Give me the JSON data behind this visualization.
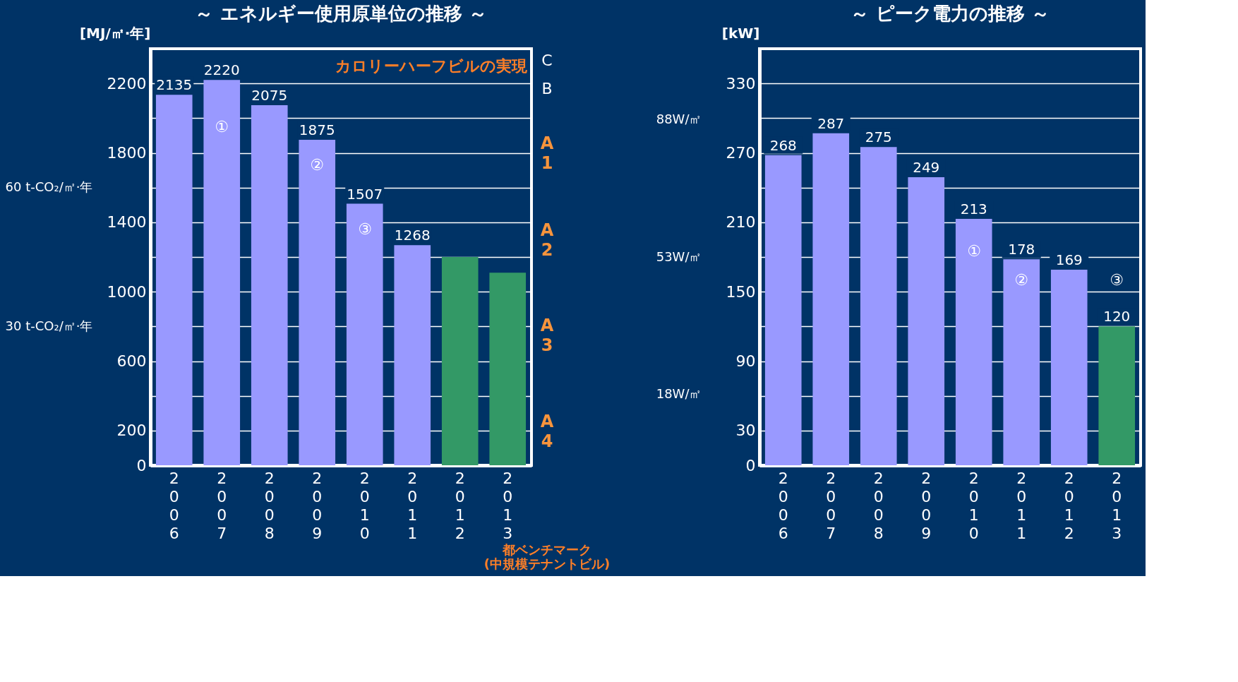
{
  "chart_data": [
    {
      "type": "bar",
      "title": "～ エネルギー使用原単位の推移 ～",
      "ylabel": "[MJ/㎡·年]",
      "categories": [
        "2006",
        "2007",
        "2008",
        "2009",
        "2010",
        "2011",
        "2012",
        "2013"
      ],
      "values": [
        2135,
        2220,
        2075,
        1875,
        1507,
        1268,
        1200,
        1110
      ],
      "colors": [
        "#9999ff",
        "#9999ff",
        "#9999ff",
        "#9999ff",
        "#9999ff",
        "#9999ff",
        "#339966",
        "#339966"
      ],
      "value_labels": [
        "2135",
        "2220",
        "2075",
        "1875",
        "1507",
        "1268",
        null,
        null
      ],
      "ylim": [
        0,
        2400
      ],
      "yticks": [
        0,
        200,
        {
          "value": 400,
          "label": null
        },
        600,
        {
          "value": 800,
          "label": null
        },
        1000,
        {
          "value": 1200,
          "label": null
        },
        1400,
        {
          "value": 1600,
          "label": null
        },
        1800,
        {
          "value": 2000,
          "label": null
        },
        2200
      ],
      "y2lim": [
        0,
        90
      ],
      "y2ticks": [
        {
          "value": 30,
          "label": "30 t-CO₂/㎡·年"
        },
        {
          "value": 60,
          "label": "60 t-CO₂/㎡·年"
        }
      ],
      "grid": "y",
      "annotations": [
        "B",
        "C",
        "カロリーハーフビルの実現",
        "①",
        "②",
        "③",
        "A1",
        "A2",
        "A3",
        "A4",
        "都ベンチマーク (中規模テナントビル)"
      ]
    },
    {
      "type": "bar",
      "title": "～ ピーク電力の推移 ～",
      "ylabel": "[kW]",
      "categories": [
        "2006",
        "2007",
        "2008",
        "2009",
        "2010",
        "2011",
        "2012",
        "2013"
      ],
      "values": [
        268,
        287,
        275,
        249,
        213,
        178,
        169,
        120
      ],
      "colors": [
        "#9999ff",
        "#9999ff",
        "#9999ff",
        "#9999ff",
        "#9999ff",
        "#9999ff",
        "#9999ff",
        "#339966"
      ],
      "data_labels": true,
      "ylim": [
        0,
        360
      ],
      "yticks": [
        0,
        30,
        {
          "value": 60,
          "label": null
        },
        90,
        {
          "value": 120,
          "label": null
        },
        150,
        {
          "value": 180,
          "label": null
        },
        210,
        {
          "value": 240,
          "label": null
        },
        270,
        {
          "value": 300,
          "label": null
        },
        330
      ],
      "y2lim": [
        0,
        106
      ],
      "y2ticks": [
        {
          "value": 18,
          "label": "18W/㎡"
        },
        {
          "value": 53,
          "label": "53W/㎡"
        },
        {
          "value": 88,
          "label": "88W/㎡"
        }
      ],
      "grid": "y",
      "annotations": [
        "①",
        "②",
        "③"
      ]
    }
  ]
}
